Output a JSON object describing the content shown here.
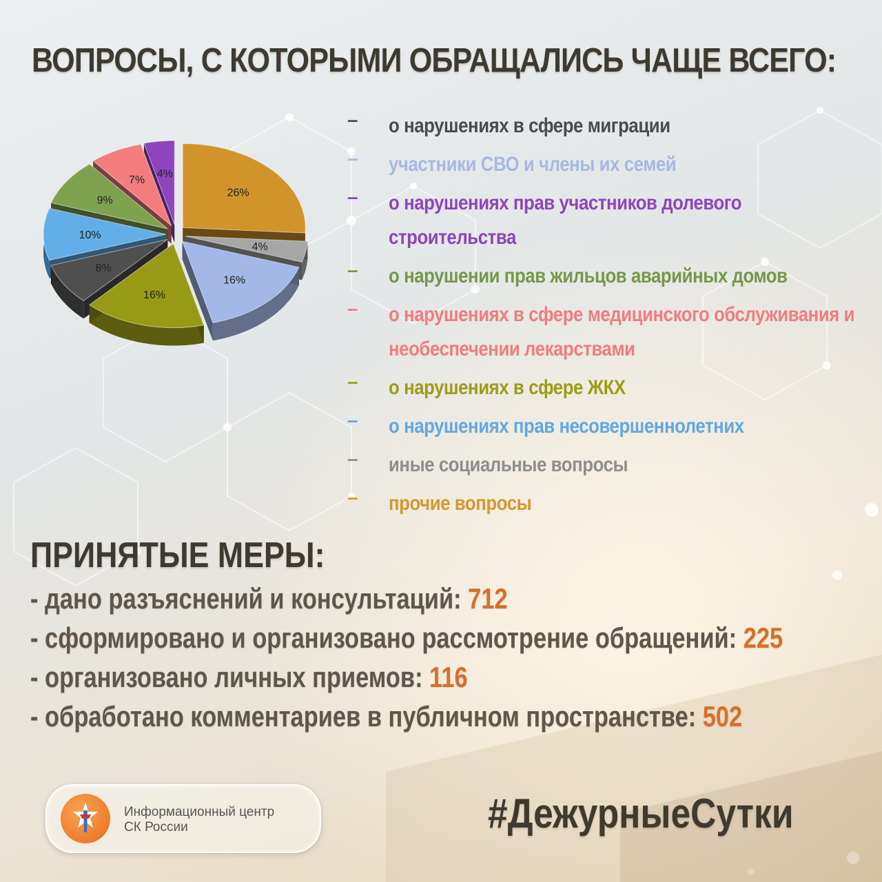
{
  "title": "ВОПРОСЫ, С КОТОРЫМИ ОБРАЩАЛИСЬ ЧАЩЕ ВСЕГО:",
  "chart_data": {
    "type": "pie",
    "title": "",
    "slices": [
      {
        "label": "прочие вопросы",
        "value": 26,
        "data_label": "26%",
        "color": "#d1942a"
      },
      {
        "label": "иные социальные вопросы",
        "value": 4,
        "data_label": "4%",
        "color": "#a6a6a6"
      },
      {
        "label": "участники СВО и члены их семей",
        "value": 16,
        "data_label": "16%",
        "color": "#a3b8e6"
      },
      {
        "label": "о нарушениях в сфере ЖКХ",
        "value": 16,
        "data_label": "16%",
        "color": "#989a16"
      },
      {
        "label": "о нарушениях в сфере миграции",
        "value": 8,
        "data_label": "8%",
        "color": "#4f4f4f"
      },
      {
        "label": "о нарушениях прав несовершеннолетних",
        "value": 10,
        "data_label": "10%",
        "color": "#62aee8"
      },
      {
        "label": "о нарушении прав жильцов аварийных домов",
        "value": 9,
        "data_label": "9%",
        "color": "#7fa250"
      },
      {
        "label": "о нарушениях в сфере медицинского обслуживания и необеспечении лекарствами",
        "value": 7,
        "data_label": "7%",
        "color": "#f47c7c"
      },
      {
        "label": "о нарушениях прав участников долевого строительства",
        "value": 4,
        "data_label": "4%",
        "color": "#8e44bd"
      }
    ],
    "legend_position": "right"
  },
  "legend": [
    {
      "text": "о нарушениях в сфере миграции",
      "color": "#4b4b4b"
    },
    {
      "text": "участники СВО и члены их семей",
      "color": "#a7b9e0"
    },
    {
      "text": "о нарушениях прав участников долевого строительства",
      "color": "#8d46bb"
    },
    {
      "text": "о нарушении прав жильцов аварийных домов",
      "color": "#76984a"
    },
    {
      "text": "о нарушениях в сфере медицинского обслуживания и необеспечении лекарствами",
      "color": "#f07d7d"
    },
    {
      "text": "о нарушениях в сфере ЖКХ",
      "color": "#9c9d18"
    },
    {
      "text": "о нарушениях прав несовершеннолетних",
      "color": "#5fa9e3"
    },
    {
      "text": "иные социальные вопросы",
      "color": "#8e8e8e"
    },
    {
      "text": "прочие вопросы",
      "color": "#d49830"
    }
  ],
  "measures": {
    "title": "ПРИНЯТЫЕ МЕРЫ:",
    "items": [
      {
        "text": "- дано разъяснений и консультаций: ",
        "value": "712"
      },
      {
        "text": "- сформировано и организовано рассмотрение обращений: ",
        "value": "225"
      },
      {
        "text": "- организовано личных приемов: ",
        "value": "116"
      },
      {
        "text": "- обработано комментариев в публичном пространстве: ",
        "value": "502"
      }
    ]
  },
  "footer": {
    "logo_line1": "Информационный центр",
    "logo_line2": "СК России",
    "hashtag": "#ДежурныеСутки"
  }
}
